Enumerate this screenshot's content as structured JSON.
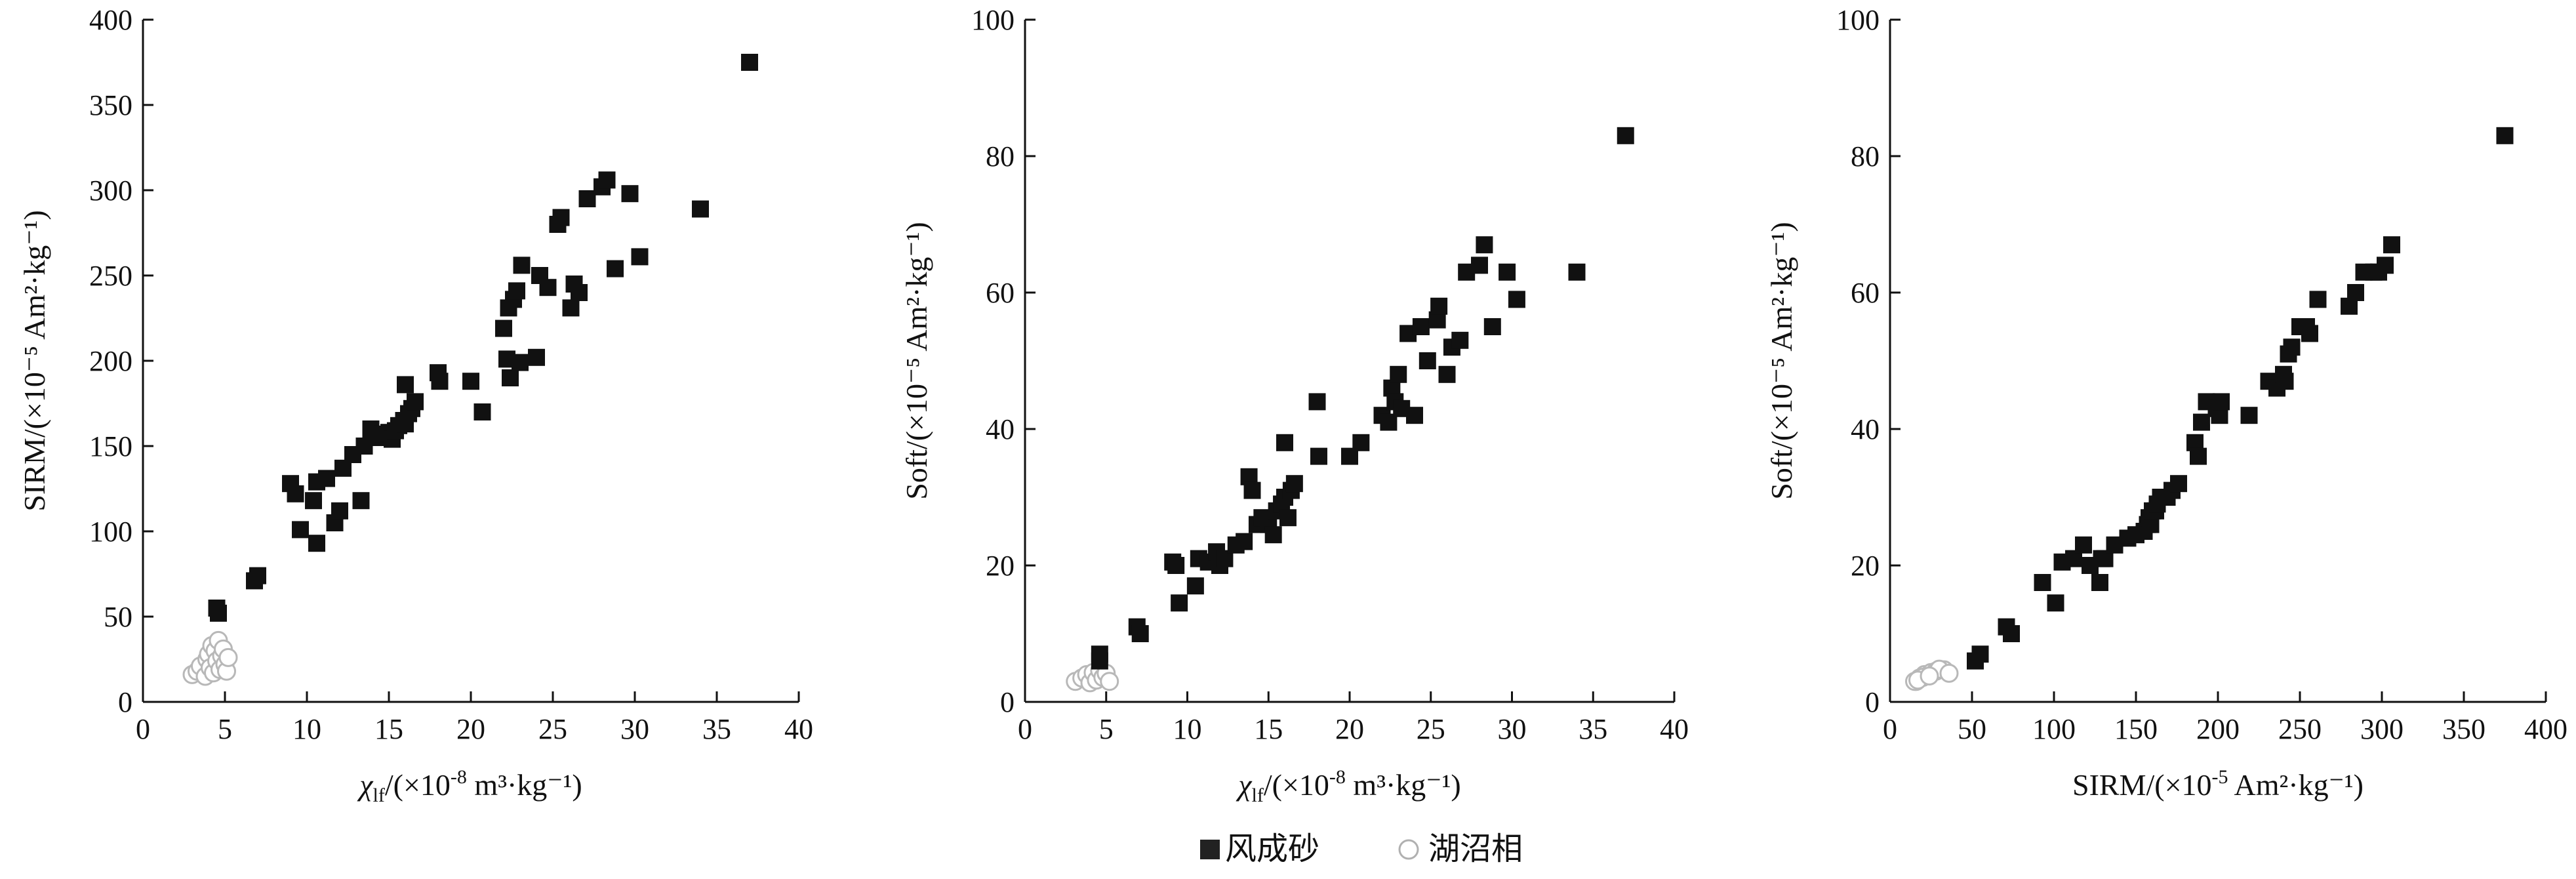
{
  "legend": {
    "entries": [
      {
        "label": "风成砂",
        "marker": "filled-square",
        "color": "#111111"
      },
      {
        "label": "湖沼相",
        "marker": "open-circle",
        "color": "#b8b8b8"
      }
    ],
    "placement": "bottom-center"
  },
  "chart_data": [
    {
      "type": "scatter",
      "xlim": [
        0,
        40
      ],
      "ylim": [
        0,
        400
      ],
      "xticks": [
        "0",
        "5",
        "10",
        "15",
        "20",
        "25",
        "30",
        "35",
        "40"
      ],
      "yticks": [
        "0",
        "50",
        "100",
        "150",
        "200",
        "250",
        "300",
        "350",
        "400"
      ],
      "xlabel": {
        "symbol": "χ",
        "sub": "lf",
        "rest": "/(×10",
        "sup": "-8",
        "unit": " m³·kg⁻¹)"
      },
      "ylabel": "SIRM/(×10⁻⁵ Am²·kg⁻¹)",
      "grid": false,
      "series": [
        {
          "name": "风成砂",
          "points": [
            [
              4.6,
              52
            ],
            [
              4.5,
              55
            ],
            [
              6.8,
              71
            ],
            [
              7,
              74
            ],
            [
              9,
              128
            ],
            [
              9.3,
              122
            ],
            [
              9.6,
              101
            ],
            [
              10.4,
              118
            ],
            [
              10.6,
              93
            ],
            [
              10.6,
              129
            ],
            [
              11.2,
              131
            ],
            [
              11.7,
              105
            ],
            [
              12,
              112
            ],
            [
              12.2,
              137
            ],
            [
              12.8,
              145
            ],
            [
              13.3,
              118
            ],
            [
              13.5,
              150
            ],
            [
              13.9,
              160
            ],
            [
              14.3,
              155
            ],
            [
              14.6,
              157
            ],
            [
              15,
              158
            ],
            [
              15.2,
              154
            ],
            [
              15.4,
              159
            ],
            [
              15.6,
              162
            ],
            [
              15.9,
              165
            ],
            [
              16,
              163
            ],
            [
              16.2,
              169
            ],
            [
              16.4,
              172
            ],
            [
              16.6,
              176
            ],
            [
              16,
              186
            ],
            [
              18,
              193
            ],
            [
              18.1,
              188
            ],
            [
              20,
              188
            ],
            [
              20.7,
              170
            ],
            [
              22,
              219
            ],
            [
              22.2,
              201
            ],
            [
              22.3,
              231
            ],
            [
              22.4,
              190
            ],
            [
              22.6,
              236
            ],
            [
              22.8,
              241
            ],
            [
              23,
              199
            ],
            [
              23.1,
              256
            ],
            [
              24,
              202
            ],
            [
              24.2,
              250
            ],
            [
              24.7,
              243
            ],
            [
              25.3,
              280
            ],
            [
              25.5,
              284
            ],
            [
              26.1,
              231
            ],
            [
              26.3,
              245
            ],
            [
              26.6,
              240
            ],
            [
              27.1,
              295
            ],
            [
              28,
              302
            ],
            [
              28.3,
              306
            ],
            [
              28.8,
              254
            ],
            [
              29.7,
              298
            ],
            [
              30.3,
              261
            ],
            [
              34,
              289
            ],
            [
              37,
              375
            ]
          ]
        },
        {
          "name": "湖沼相",
          "points": [
            [
              3,
              16
            ],
            [
              3.3,
              18
            ],
            [
              3.5,
              21
            ],
            [
              3.8,
              15
            ],
            [
              3.9,
              25
            ],
            [
              4,
              28
            ],
            [
              4.1,
              20
            ],
            [
              4.2,
              33
            ],
            [
              4.3,
              17
            ],
            [
              4.4,
              30
            ],
            [
              4.5,
              24
            ],
            [
              4.6,
              36
            ],
            [
              4.7,
              19
            ],
            [
              4.8,
              27
            ],
            [
              4.9,
              31
            ],
            [
              5,
              22
            ],
            [
              5.1,
              18
            ],
            [
              5.2,
              26
            ]
          ]
        }
      ]
    },
    {
      "type": "scatter",
      "xlim": [
        0,
        40
      ],
      "ylim": [
        0,
        100
      ],
      "xticks": [
        "0",
        "5",
        "10",
        "15",
        "20",
        "25",
        "30",
        "35",
        "40"
      ],
      "yticks": [
        "0",
        "20",
        "40",
        "60",
        "80",
        "100"
      ],
      "xlabel": {
        "symbol": "χ",
        "sub": "lf",
        "rest": "/(×10",
        "sup": "-8",
        "unit": " m³·kg⁻¹)"
      },
      "ylabel": "Soft/(×10⁻⁵ Am²·kg⁻¹)",
      "grid": false,
      "series": [
        {
          "name": "风成砂",
          "points": [
            [
              4.6,
              6
            ],
            [
              4.6,
              7
            ],
            [
              6.9,
              11
            ],
            [
              7.1,
              10
            ],
            [
              9.1,
              20.5
            ],
            [
              9.3,
              20
            ],
            [
              9.5,
              14.5
            ],
            [
              10.5,
              17
            ],
            [
              10.7,
              21
            ],
            [
              11.3,
              20.5
            ],
            [
              11.8,
              22
            ],
            [
              12,
              20
            ],
            [
              12.3,
              21
            ],
            [
              13,
              23
            ],
            [
              13.5,
              23.5
            ],
            [
              13.8,
              33
            ],
            [
              14,
              31
            ],
            [
              14.3,
              26
            ],
            [
              14.6,
              27
            ],
            [
              15,
              26
            ],
            [
              15.3,
              24.5
            ],
            [
              15.5,
              28
            ],
            [
              15.8,
              29
            ],
            [
              16,
              30
            ],
            [
              16.2,
              27
            ],
            [
              16.4,
              31
            ],
            [
              16.6,
              32
            ],
            [
              16,
              38
            ],
            [
              18,
              44
            ],
            [
              18.1,
              36
            ],
            [
              20,
              36
            ],
            [
              20.7,
              38
            ],
            [
              22,
              42
            ],
            [
              22.4,
              41
            ],
            [
              22.6,
              46
            ],
            [
              22.8,
              44
            ],
            [
              23,
              48
            ],
            [
              23.2,
              43
            ],
            [
              23.6,
              54
            ],
            [
              24,
              42
            ],
            [
              24.4,
              55
            ],
            [
              24.8,
              50
            ],
            [
              25.4,
              56
            ],
            [
              25.5,
              58
            ],
            [
              26,
              48
            ],
            [
              26.3,
              52
            ],
            [
              26.8,
              53
            ],
            [
              27.2,
              63
            ],
            [
              28,
              64
            ],
            [
              28.3,
              67
            ],
            [
              28.8,
              55
            ],
            [
              29.7,
              63
            ],
            [
              30.3,
              59
            ],
            [
              34,
              63
            ],
            [
              37,
              83
            ]
          ]
        },
        {
          "name": "湖沼相",
          "points": [
            [
              3.1,
              3
            ],
            [
              3.5,
              3.5
            ],
            [
              3.8,
              4
            ],
            [
              4,
              2.8
            ],
            [
              4.2,
              4.3
            ],
            [
              4.4,
              3.2
            ],
            [
              4.6,
              4.6
            ],
            [
              4.8,
              3.6
            ],
            [
              5,
              4.2
            ],
            [
              5.2,
              3
            ]
          ]
        }
      ]
    },
    {
      "type": "scatter",
      "xlim": [
        0,
        400
      ],
      "ylim": [
        0,
        100
      ],
      "xticks": [
        "0",
        "50",
        "100",
        "150",
        "200",
        "250",
        "300",
        "350",
        "400"
      ],
      "yticks": [
        "0",
        "20",
        "40",
        "60",
        "80",
        "100"
      ],
      "xlabel": {
        "symbol": "",
        "sub": "",
        "rest": "SIRM/(×10",
        "sup": "-5",
        "unit": " Am²·kg⁻¹)"
      },
      "ylabel": "Soft/(×10⁻⁵ Am²·kg⁻¹)",
      "grid": false,
      "series": [
        {
          "name": "风成砂",
          "points": [
            [
              52,
              6
            ],
            [
              55,
              7
            ],
            [
              71,
              11
            ],
            [
              74,
              10
            ],
            [
              93,
              17.5
            ],
            [
              101,
              14.5
            ],
            [
              105,
              20.5
            ],
            [
              112,
              21
            ],
            [
              118,
              23
            ],
            [
              122,
              20
            ],
            [
              128,
              17.5
            ],
            [
              129,
              21
            ],
            [
              131,
              21
            ],
            [
              137,
              23
            ],
            [
              145,
              24
            ],
            [
              150,
              24.5
            ],
            [
              155,
              25
            ],
            [
              157,
              26
            ],
            [
              158,
              27
            ],
            [
              159,
              26
            ],
            [
              160,
              28
            ],
            [
              162,
              28
            ],
            [
              163,
              29
            ],
            [
              165,
              30
            ],
            [
              169,
              30
            ],
            [
              172,
              31
            ],
            [
              176,
              32
            ],
            [
              186,
              38
            ],
            [
              188,
              36
            ],
            [
              190,
              41
            ],
            [
              193,
              44
            ],
            [
              199,
              43
            ],
            [
              201,
              42
            ],
            [
              202,
              44
            ],
            [
              219,
              42
            ],
            [
              231,
              47
            ],
            [
              236,
              46
            ],
            [
              240,
              48
            ],
            [
              241,
              47
            ],
            [
              243,
              51
            ],
            [
              245,
              52
            ],
            [
              250,
              55
            ],
            [
              254,
              55
            ],
            [
              256,
              54
            ],
            [
              261,
              59
            ],
            [
              280,
              58
            ],
            [
              284,
              60
            ],
            [
              289,
              63
            ],
            [
              295,
              63
            ],
            [
              298,
              63
            ],
            [
              302,
              64
            ],
            [
              306,
              67
            ],
            [
              375,
              83
            ]
          ]
        },
        {
          "name": "湖沼相",
          "points": [
            [
              16,
              3
            ],
            [
              18,
              3.5
            ],
            [
              21,
              4
            ],
            [
              15,
              3
            ],
            [
              25,
              4.3
            ],
            [
              28,
              4.5
            ],
            [
              20,
              3.6
            ],
            [
              33,
              4.7
            ],
            [
              17,
              3.2
            ],
            [
              30,
              4.8
            ],
            [
              24,
              3.8
            ],
            [
              36,
              4.2
            ]
          ]
        }
      ]
    }
  ]
}
